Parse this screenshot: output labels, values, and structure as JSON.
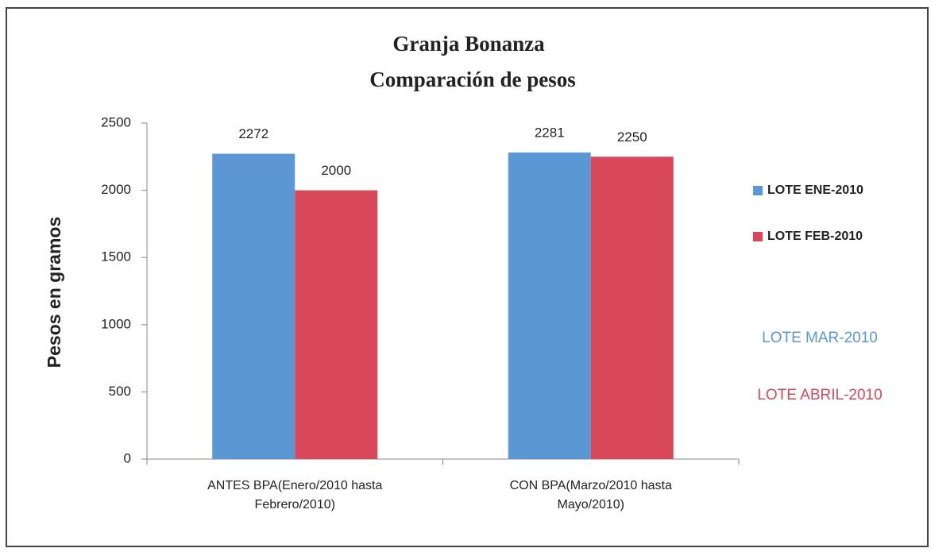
{
  "chart_data": {
    "type": "bar",
    "title": "Granja Bonanza",
    "subtitle": "Comparación de pesos",
    "y_label": "Pesos en gramos",
    "categories": [
      "ANTES BPA(Enero/2010 hasta Febrero/2010)",
      "CON BPA(Marzo/2010 hasta Mayo/2010)"
    ],
    "series": [
      {
        "name": "LOTE ENE-2010",
        "color": "#5b97d5",
        "values": [
          2272,
          2281
        ]
      },
      {
        "name": "LOTE FEB-2010",
        "color": "#d8485a",
        "values": [
          2000,
          2250
        ]
      }
    ],
    "annotations": [
      {
        "text": "LOTE MAR-2010",
        "color": "#5b97d5"
      },
      {
        "text": "LOTE ABRIL-2010",
        "color": "#d8485a"
      }
    ],
    "ylim": [
      0,
      2500
    ],
    "yticks": [
      0,
      500,
      1000,
      1500,
      2000,
      2500
    ],
    "legend": "right",
    "grid": false
  }
}
